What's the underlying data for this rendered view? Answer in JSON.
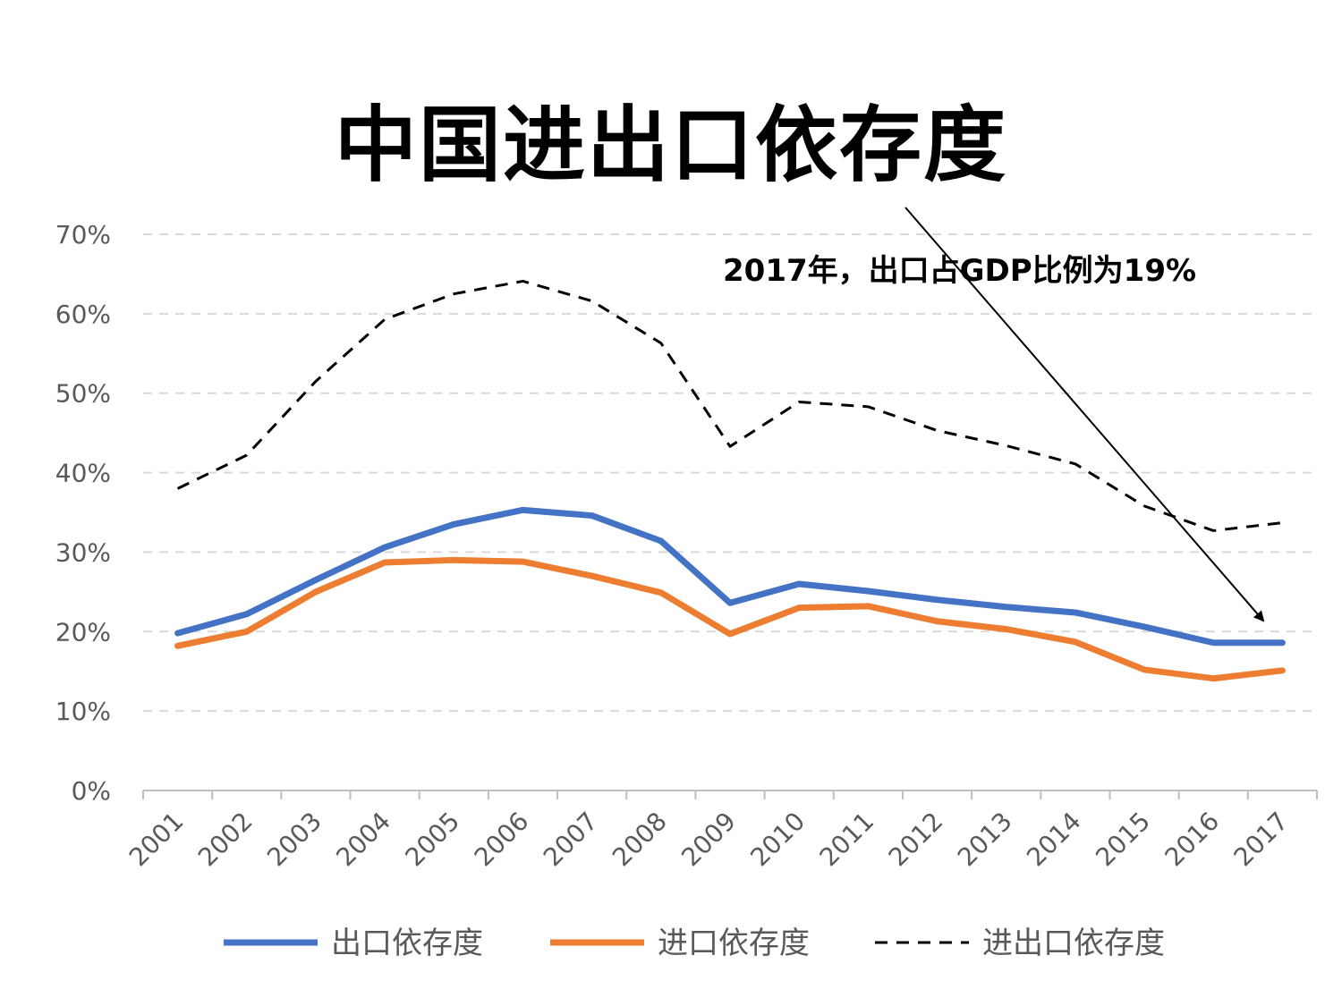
{
  "chart_data": {
    "type": "line",
    "title": "中国进出口依存度",
    "categories": [
      "2001",
      "2002",
      "2003",
      "2004",
      "2005",
      "2006",
      "2007",
      "2008",
      "2009",
      "2010",
      "2011",
      "2012",
      "2013",
      "2014",
      "2015",
      "2016",
      "2017"
    ],
    "yticks": [
      "0%",
      "10%",
      "20%",
      "30%",
      "40%",
      "50%",
      "60%",
      "70%"
    ],
    "ylim": [
      0,
      70
    ],
    "grid": true,
    "legend_position": "bottom",
    "series": [
      {
        "name": "出口依存度",
        "color": "#4472C4",
        "style": "solid",
        "values": [
          19.8,
          22.2,
          26.5,
          30.6,
          33.5,
          35.3,
          34.6,
          31.4,
          23.6,
          26.0,
          25.1,
          24.0,
          23.1,
          22.4,
          20.6,
          18.6,
          18.6
        ]
      },
      {
        "name": "进口依存度",
        "color": "#ED7D31",
        "style": "solid",
        "values": [
          18.2,
          20.0,
          25.0,
          28.7,
          29.0,
          28.8,
          27.0,
          24.9,
          19.7,
          23.0,
          23.2,
          21.3,
          20.3,
          18.7,
          15.2,
          14.1,
          15.1
        ]
      },
      {
        "name": "进出口依存度",
        "color": "#000000",
        "style": "dashed",
        "values": [
          38.0,
          42.2,
          51.5,
          59.3,
          62.5,
          64.1,
          61.6,
          56.3,
          43.3,
          48.9,
          48.3,
          45.3,
          43.4,
          41.1,
          35.8,
          32.7,
          33.7
        ]
      }
    ],
    "annotation": {
      "text": "2017年，出口占GDP比例为19%"
    }
  }
}
